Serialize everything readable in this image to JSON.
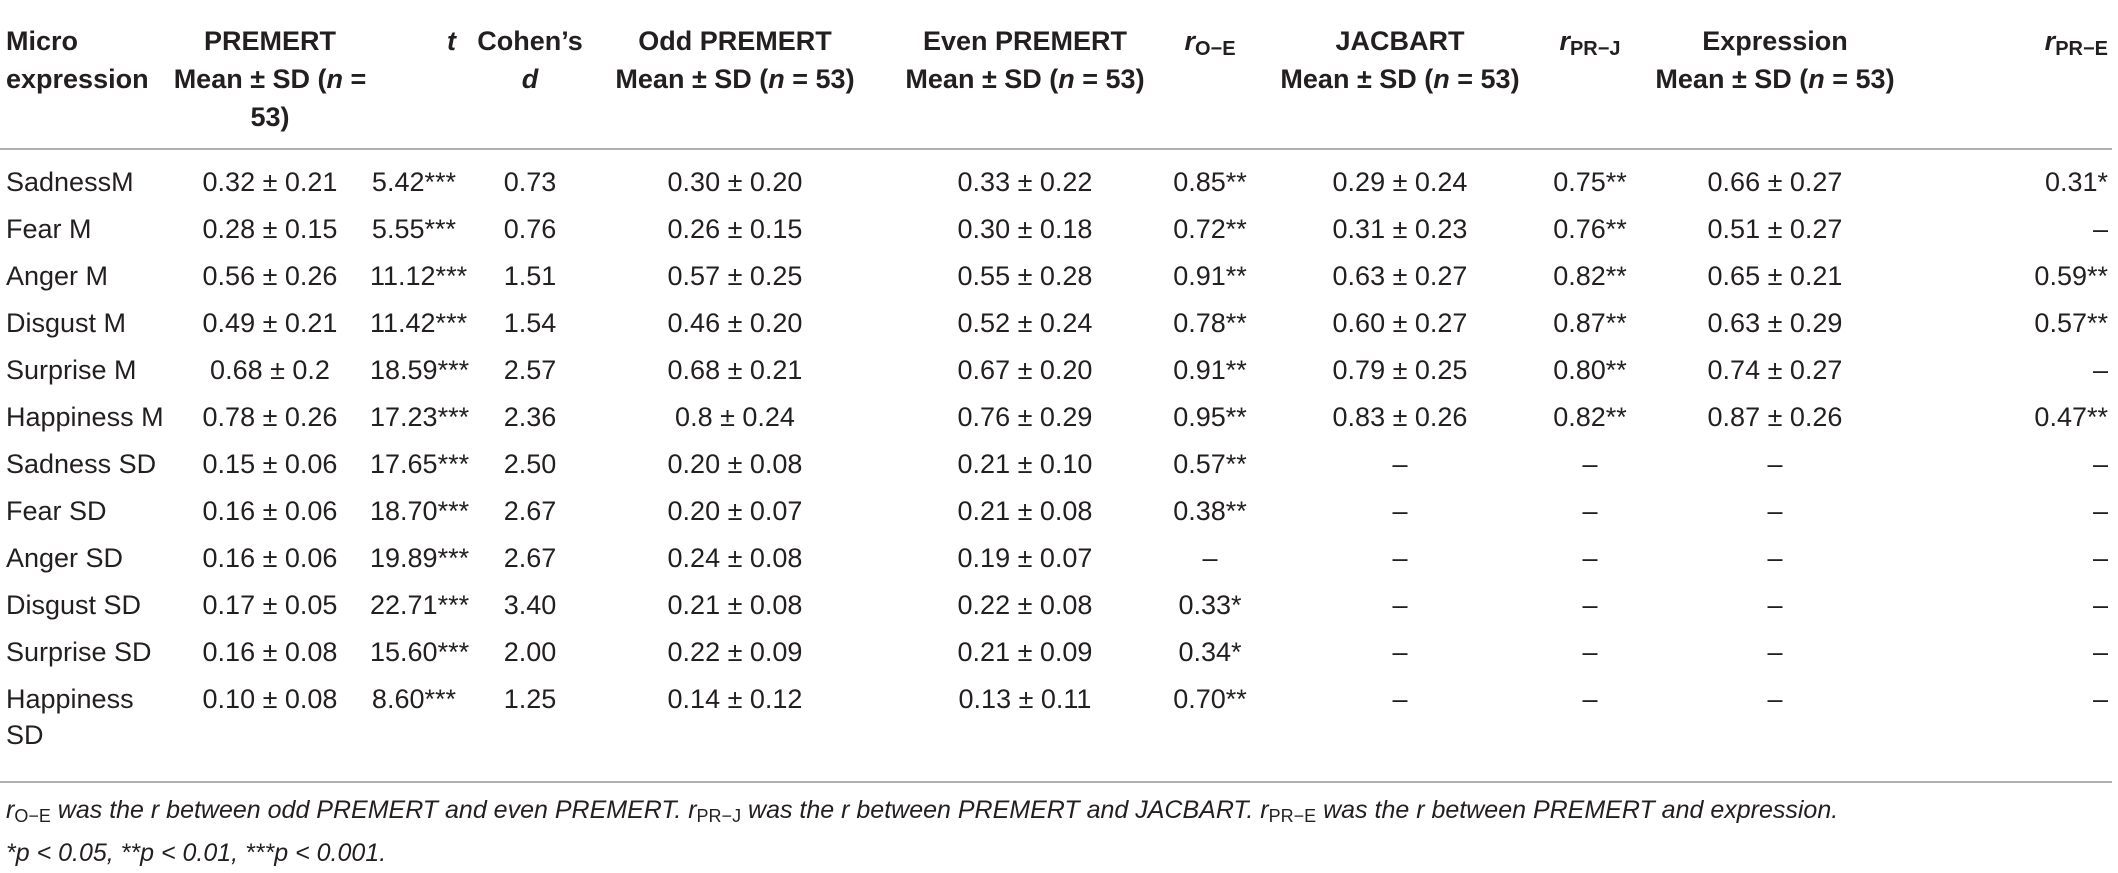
{
  "table": {
    "headers": [
      {
        "line1": "Micro",
        "line2": "expression",
        "align": "l"
      },
      {
        "line1": "PREMERT",
        "line2_pre": "Mean ± SD (",
        "line2_it": "n",
        "line2_post": " = 53)",
        "align": "c"
      },
      {
        "italic": "t",
        "align": "r"
      },
      {
        "line1": "Cohen’s",
        "line2_it": "d",
        "align": "c"
      },
      {
        "line1": "Odd PREMERT",
        "line2_pre": "Mean ± SD (",
        "line2_it": "n",
        "line2_post": " = 53)",
        "align": "c"
      },
      {
        "line1": "Even PREMERT",
        "line2_pre": "Mean ± SD (",
        "line2_it": "n",
        "line2_post": " = 53)",
        "align": "c"
      },
      {
        "r": "r",
        "sub": "O−E",
        "align": "c"
      },
      {
        "line1": "JACBART",
        "line2_pre": "Mean ± SD (",
        "line2_it": "n",
        "line2_post": " = 53)",
        "align": "c"
      },
      {
        "r": "r",
        "sub": "PR−J",
        "align": "c"
      },
      {
        "line1": "Expression",
        "line2_pre": "Mean ± SD (",
        "line2_it": "n",
        "line2_post": " = 53)",
        "align": "c"
      },
      {
        "r": "r",
        "sub": "PR−E",
        "align": "r"
      }
    ],
    "rows": [
      [
        "SadnessM",
        "0.32 ± 0.21",
        "5.42***",
        "0.73",
        "0.30 ± 0.20",
        "0.33 ± 0.22",
        "0.85**",
        "0.29 ± 0.24",
        "0.75**",
        "0.66 ± 0.27",
        "0.31*"
      ],
      [
        "Fear M",
        "0.28 ± 0.15",
        "5.55***",
        "0.76",
        "0.26 ± 0.15",
        "0.30 ± 0.18",
        "0.72**",
        "0.31 ± 0.23",
        "0.76**",
        "0.51 ± 0.27",
        "–"
      ],
      [
        "Anger M",
        "0.56 ± 0.26",
        "11.12***",
        "1.51",
        "0.57 ± 0.25",
        "0.55 ± 0.28",
        "0.91**",
        "0.63 ± 0.27",
        "0.82**",
        "0.65 ± 0.21",
        "0.59**"
      ],
      [
        "Disgust M",
        "0.49 ± 0.21",
        "11.42***",
        "1.54",
        "0.46 ± 0.20",
        "0.52 ± 0.24",
        "0.78**",
        "0.60 ± 0.27",
        "0.87**",
        "0.63 ± 0.29",
        "0.57**"
      ],
      [
        "Surprise M",
        "0.68 ± 0.2",
        "18.59***",
        "2.57",
        "0.68 ± 0.21",
        "0.67 ± 0.20",
        "0.91**",
        "0.79 ± 0.25",
        "0.80**",
        "0.74 ± 0.27",
        "–"
      ],
      [
        "Happiness M",
        "0.78 ± 0.26",
        "17.23***",
        "2.36",
        "0.8 ± 0.24",
        "0.76 ± 0.29",
        "0.95**",
        "0.83 ± 0.26",
        "0.82**",
        "0.87 ± 0.26",
        "0.47**"
      ],
      [
        "Sadness SD",
        "0.15 ± 0.06",
        "17.65***",
        "2.50",
        "0.20 ± 0.08",
        "0.21 ± 0.10",
        "0.57**",
        "–",
        "–",
        "–",
        "–"
      ],
      [
        "Fear SD",
        "0.16 ± 0.06",
        "18.70***",
        "2.67",
        "0.20 ± 0.07",
        "0.21 ± 0.08",
        "0.38**",
        "–",
        "–",
        "–",
        "–"
      ],
      [
        "Anger SD",
        "0.16 ± 0.06",
        "19.89***",
        "2.67",
        "0.24 ± 0.08",
        "0.19 ± 0.07",
        "–",
        "–",
        "–",
        "–",
        "–"
      ],
      [
        "Disgust SD",
        "0.17 ± 0.05",
        "22.71***",
        "3.40",
        "0.21 ± 0.08",
        "0.22 ± 0.08",
        "0.33*",
        "–",
        "–",
        "–",
        "–"
      ],
      [
        "Surprise SD",
        "0.16 ± 0.08",
        "15.60***",
        "2.00",
        "0.22 ± 0.09",
        "0.21 ± 0.09",
        "0.34*",
        "–",
        "–",
        "–",
        "–"
      ],
      [
        "Happiness SD",
        "0.10 ± 0.08",
        "8.60***",
        "1.25",
        "0.14 ± 0.12",
        "0.13 ± 0.11",
        "0.70**",
        "–",
        "–",
        "–",
        "–"
      ]
    ],
    "col_align": [
      "l",
      "c",
      "r",
      "c",
      "c",
      "c",
      "c",
      "c",
      "c",
      "c",
      "r"
    ]
  },
  "footnote": {
    "s1_r": "r",
    "s1_sub": "O−E",
    "s1_text": " was the r between odd PREMERT and even PREMERT. ",
    "s2_r": "r",
    "s2_sub": "PR−J",
    "s2_text": " was the r between PREMERT and JACBART. ",
    "s3_r": "r",
    "s3_sub": "PR−E",
    "s3_text": " was the r between PREMERT and expression.",
    "line2": "*p < 0.05, **p < 0.01, ***p < 0.001."
  }
}
